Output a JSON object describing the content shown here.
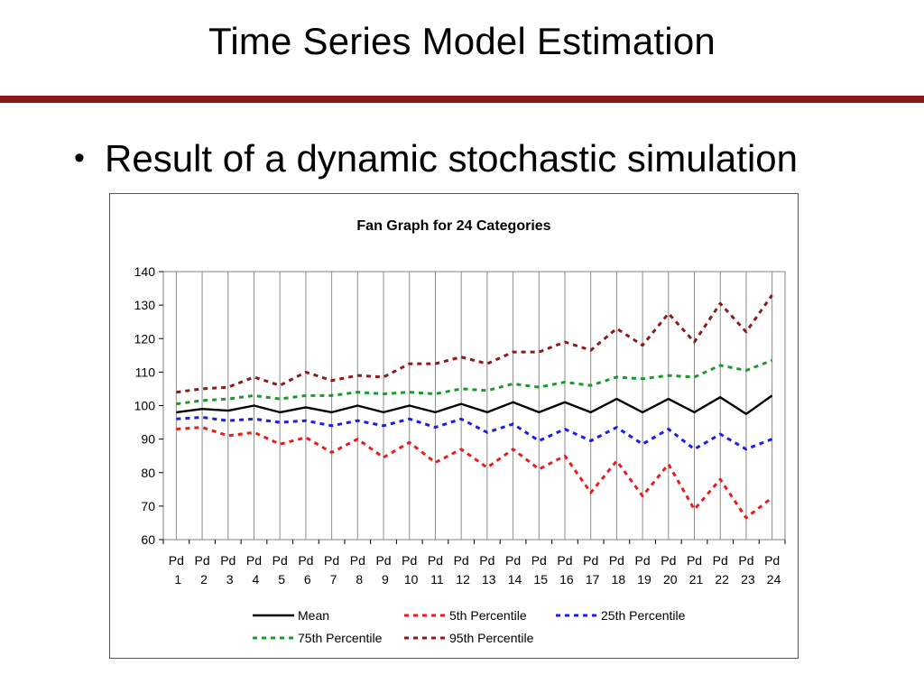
{
  "slide": {
    "title": "Time Series Model Estimation",
    "bullet": "Result of a dynamic stochastic simulation"
  },
  "chart_data": {
    "type": "line",
    "title": "Fan Graph for 24 Categories",
    "categories": [
      "Pd 1",
      "Pd 2",
      "Pd 3",
      "Pd 4",
      "Pd 5",
      "Pd 6",
      "Pd 7",
      "Pd 8",
      "Pd 9",
      "Pd 10",
      "Pd 11",
      "Pd 12",
      "Pd 13",
      "Pd 14",
      "Pd 15",
      "Pd 16",
      "Pd 17",
      "Pd 18",
      "Pd 19",
      "Pd 20",
      "Pd 21",
      "Pd 22",
      "Pd 23",
      "Pd 24"
    ],
    "ylim": [
      60,
      140
    ],
    "yticks": [
      60,
      70,
      80,
      90,
      100,
      110,
      120,
      130,
      140
    ],
    "grid": "vertical",
    "legend_position": "bottom",
    "series": [
      {
        "name": "Mean",
        "color": "#000000",
        "style": "solid",
        "values": [
          98,
          99,
          98.5,
          100,
          98,
          99.5,
          98,
          100,
          98,
          100,
          98,
          100.5,
          98,
          101,
          98,
          101,
          98,
          102,
          98,
          102,
          98,
          102.5,
          97.5,
          103
        ]
      },
      {
        "name": "5th Percentile",
        "color": "#e81c1c",
        "style": "dashed",
        "values": [
          93,
          93.5,
          91,
          92,
          88.5,
          90.5,
          86,
          90,
          84.5,
          89,
          83,
          87,
          81.5,
          87,
          81,
          85,
          74,
          83.5,
          73,
          82.5,
          69,
          78,
          66.5,
          72.5
        ]
      },
      {
        "name": "25th Percentile",
        "color": "#1c1ce8",
        "style": "dashed",
        "values": [
          96,
          96.5,
          95.5,
          96,
          95,
          95.5,
          94,
          95.5,
          94,
          96,
          93.5,
          96,
          92,
          94.5,
          89.5,
          93,
          89.5,
          93.5,
          88.5,
          93,
          87,
          91.5,
          87,
          90
        ]
      },
      {
        "name": "75th Percentile",
        "color": "#1a9a2a",
        "style": "dashed",
        "values": [
          100.5,
          101.5,
          102,
          103,
          102,
          103,
          103,
          104,
          103.5,
          104,
          103.5,
          105,
          104.5,
          106.5,
          105.5,
          107,
          106,
          108.5,
          108,
          109,
          108.5,
          112,
          110.5,
          113.5
        ]
      },
      {
        "name": "95th Percentile",
        "color": "#8b1a1a",
        "style": "dashed",
        "values": [
          104,
          105,
          105.5,
          108.5,
          106,
          110,
          107.5,
          109,
          108.5,
          112.5,
          112.5,
          114.5,
          112.5,
          116,
          116,
          119,
          116.5,
          123,
          118,
          127.5,
          119,
          130.5,
          122,
          133
        ]
      }
    ]
  }
}
